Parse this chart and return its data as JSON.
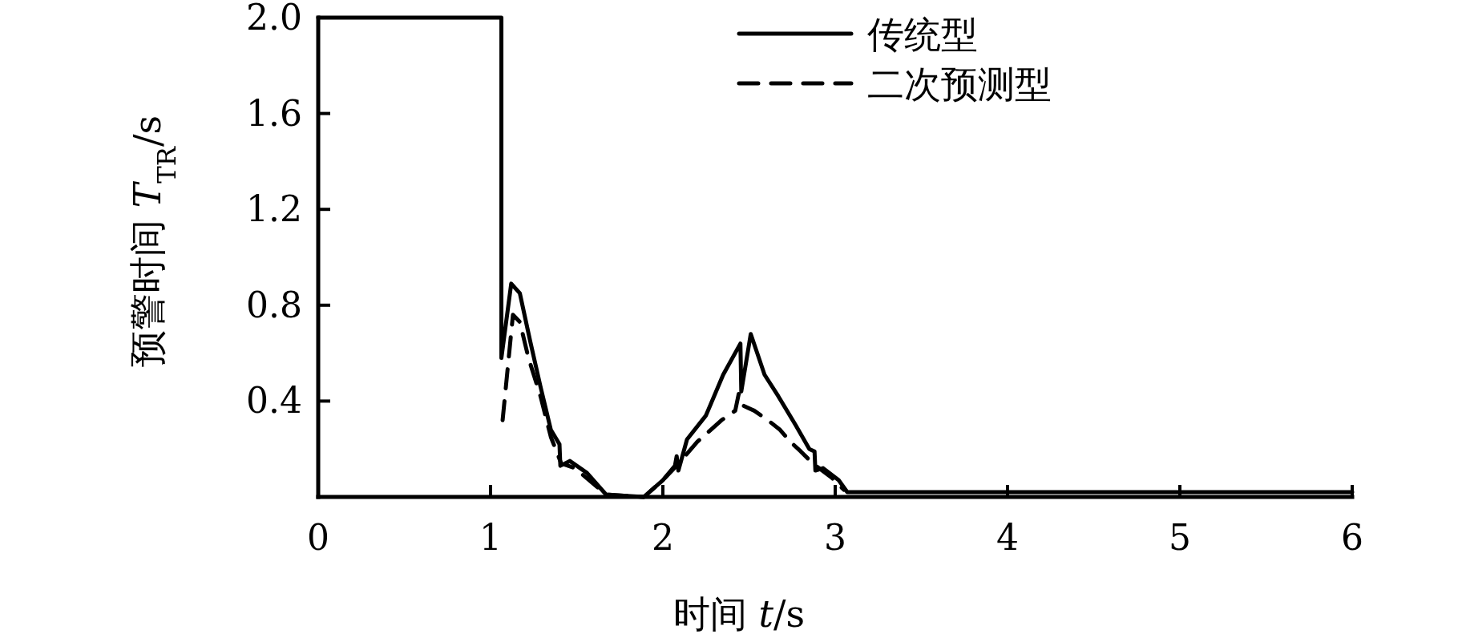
{
  "chart_data": {
    "type": "line",
    "xlabel": "时间 *t*/s",
    "ylabel": "预警时间 *T*$_{TR}$/s",
    "xlim": [
      0,
      6
    ],
    "ylim": [
      0,
      2.0
    ],
    "xticks": [
      0,
      1,
      2,
      3,
      4,
      5,
      6
    ],
    "yticks": [
      {
        "value": 0.4,
        "label": "0.4"
      },
      {
        "value": 0.8,
        "label": "0.8"
      },
      {
        "value": 1.2,
        "label": "1.2"
      },
      {
        "value": 1.6,
        "label": "1.6"
      },
      {
        "value": 2.0,
        "label": "2.0"
      }
    ],
    "legend": "top",
    "grid": false,
    "marker": "none",
    "series": [
      {
        "name": "传统型",
        "color": "#000000",
        "line_style": "solid",
        "x": [
          0,
          1.063,
          1.063,
          1.12,
          1.17,
          1.23,
          1.29,
          1.35,
          1.4,
          1.405,
          1.46,
          1.56,
          1.67,
          1.89,
          2.0,
          2.07,
          2.08,
          2.09,
          2.14,
          2.25,
          2.35,
          2.45,
          2.455,
          2.51,
          2.59,
          2.67,
          2.77,
          2.85,
          2.88,
          2.885,
          2.93,
          3.02,
          3.07,
          6
        ],
        "values": [
          2.0,
          2.0,
          0.58,
          0.89,
          0.85,
          0.65,
          0.46,
          0.28,
          0.22,
          0.13,
          0.15,
          0.1,
          0.01,
          0.0,
          0.07,
          0.13,
          0.17,
          0.11,
          0.24,
          0.34,
          0.51,
          0.64,
          0.44,
          0.68,
          0.51,
          0.42,
          0.3,
          0.2,
          0.19,
          0.11,
          0.12,
          0.07,
          0.02,
          0.02
        ]
      },
      {
        "name": "二次预测型",
        "color": "#000000",
        "line_style": "dashed",
        "x": [
          1.07,
          1.13,
          1.17,
          1.22,
          1.29,
          1.35,
          1.41,
          1.49,
          1.67,
          1.89,
          2.0,
          2.08,
          2.14,
          2.2,
          2.34,
          2.42,
          2.44,
          2.47,
          2.53,
          2.61,
          2.68,
          2.74,
          2.8,
          2.87,
          2.98,
          3.05
        ],
        "values": [
          0.32,
          0.76,
          0.73,
          0.58,
          0.42,
          0.25,
          0.14,
          0.12,
          0.01,
          0.0,
          0.07,
          0.13,
          0.18,
          0.23,
          0.32,
          0.36,
          0.43,
          0.38,
          0.36,
          0.32,
          0.28,
          0.23,
          0.19,
          0.14,
          0.08,
          0.03
        ]
      }
    ]
  }
}
